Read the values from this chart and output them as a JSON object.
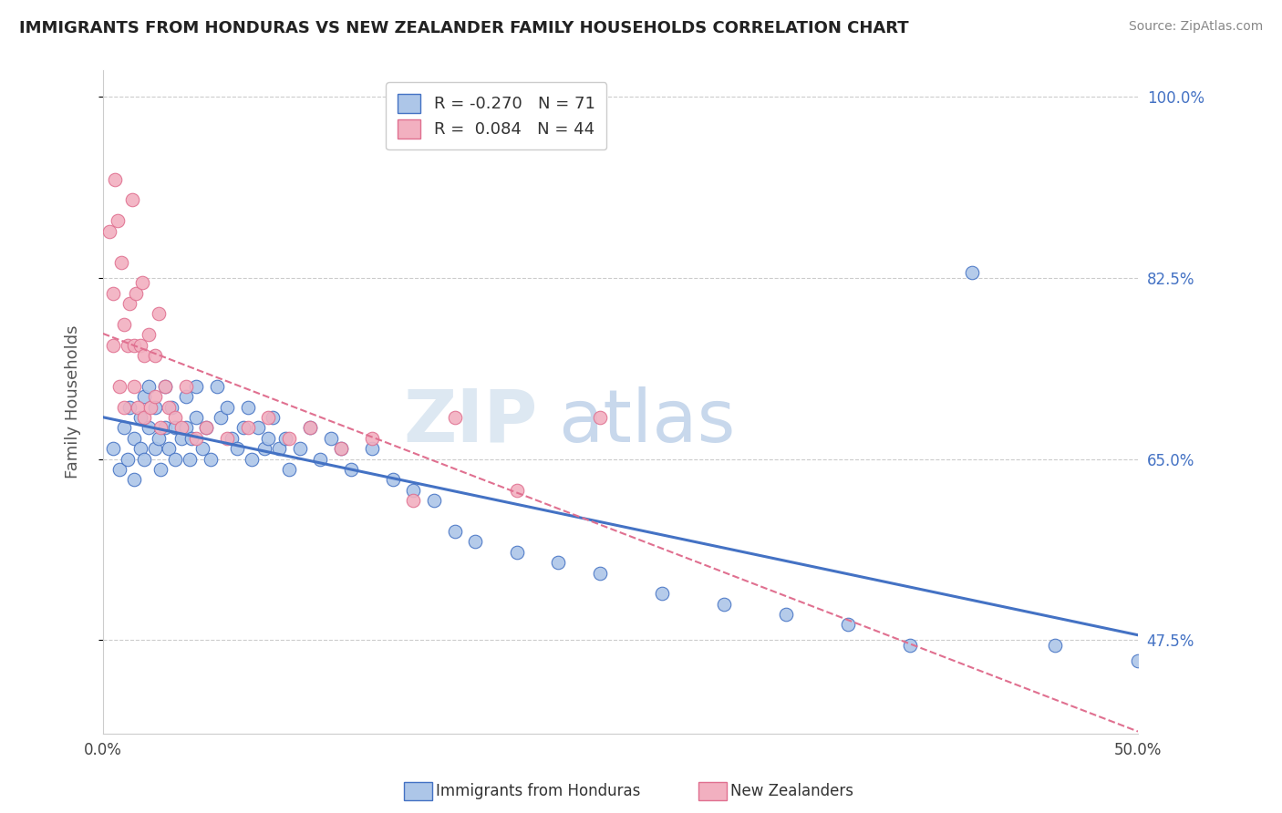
{
  "title": "IMMIGRANTS FROM HONDURAS VS NEW ZEALANDER FAMILY HOUSEHOLDS CORRELATION CHART",
  "source": "Source: ZipAtlas.com",
  "xlabel_bottom": "Immigrants from Honduras",
  "xlabel_bottom2": "New Zealanders",
  "ylabel": "Family Households",
  "R_blue": -0.27,
  "N_blue": 71,
  "R_pink": 0.084,
  "N_pink": 44,
  "xmin": 0.0,
  "xmax": 0.5,
  "ymin": 0.385,
  "ymax": 1.025,
  "yticks": [
    0.475,
    0.65,
    0.825,
    1.0
  ],
  "ytick_labels": [
    "47.5%",
    "65.0%",
    "82.5%",
    "100.0%"
  ],
  "xticks": [
    0.0,
    0.1,
    0.2,
    0.3,
    0.4,
    0.5
  ],
  "xtick_labels": [
    "0.0%",
    "",
    "",
    "",
    "",
    "50.0%"
  ],
  "color_blue": "#adc6e8",
  "color_pink": "#f2b0c0",
  "color_blue_line": "#4472c4",
  "color_pink_line": "#e07090",
  "blue_points_x": [
    0.005,
    0.008,
    0.01,
    0.012,
    0.013,
    0.015,
    0.015,
    0.018,
    0.018,
    0.02,
    0.02,
    0.022,
    0.022,
    0.025,
    0.025,
    0.027,
    0.028,
    0.03,
    0.03,
    0.032,
    0.033,
    0.035,
    0.035,
    0.038,
    0.04,
    0.04,
    0.042,
    0.043,
    0.045,
    0.045,
    0.048,
    0.05,
    0.052,
    0.055,
    0.057,
    0.06,
    0.062,
    0.065,
    0.068,
    0.07,
    0.072,
    0.075,
    0.078,
    0.08,
    0.082,
    0.085,
    0.088,
    0.09,
    0.095,
    0.1,
    0.105,
    0.11,
    0.115,
    0.12,
    0.13,
    0.14,
    0.15,
    0.16,
    0.17,
    0.18,
    0.2,
    0.22,
    0.24,
    0.27,
    0.3,
    0.33,
    0.36,
    0.39,
    0.42,
    0.46,
    0.5
  ],
  "blue_points_y": [
    0.66,
    0.64,
    0.68,
    0.65,
    0.7,
    0.67,
    0.63,
    0.69,
    0.66,
    0.71,
    0.65,
    0.72,
    0.68,
    0.7,
    0.66,
    0.67,
    0.64,
    0.72,
    0.68,
    0.66,
    0.7,
    0.68,
    0.65,
    0.67,
    0.71,
    0.68,
    0.65,
    0.67,
    0.72,
    0.69,
    0.66,
    0.68,
    0.65,
    0.72,
    0.69,
    0.7,
    0.67,
    0.66,
    0.68,
    0.7,
    0.65,
    0.68,
    0.66,
    0.67,
    0.69,
    0.66,
    0.67,
    0.64,
    0.66,
    0.68,
    0.65,
    0.67,
    0.66,
    0.64,
    0.66,
    0.63,
    0.62,
    0.61,
    0.58,
    0.57,
    0.56,
    0.55,
    0.54,
    0.52,
    0.51,
    0.5,
    0.49,
    0.47,
    0.83,
    0.47,
    0.455
  ],
  "pink_points_x": [
    0.003,
    0.005,
    0.005,
    0.006,
    0.007,
    0.008,
    0.009,
    0.01,
    0.01,
    0.012,
    0.013,
    0.014,
    0.015,
    0.015,
    0.016,
    0.017,
    0.018,
    0.019,
    0.02,
    0.02,
    0.022,
    0.023,
    0.025,
    0.025,
    0.027,
    0.028,
    0.03,
    0.032,
    0.035,
    0.038,
    0.04,
    0.045,
    0.05,
    0.06,
    0.07,
    0.08,
    0.09,
    0.1,
    0.115,
    0.13,
    0.15,
    0.17,
    0.2,
    0.24
  ],
  "pink_points_y": [
    0.87,
    0.81,
    0.76,
    0.92,
    0.88,
    0.72,
    0.84,
    0.78,
    0.7,
    0.76,
    0.8,
    0.9,
    0.76,
    0.72,
    0.81,
    0.7,
    0.76,
    0.82,
    0.75,
    0.69,
    0.77,
    0.7,
    0.75,
    0.71,
    0.79,
    0.68,
    0.72,
    0.7,
    0.69,
    0.68,
    0.72,
    0.67,
    0.68,
    0.67,
    0.68,
    0.69,
    0.67,
    0.68,
    0.66,
    0.67,
    0.61,
    0.69,
    0.62,
    0.69
  ]
}
